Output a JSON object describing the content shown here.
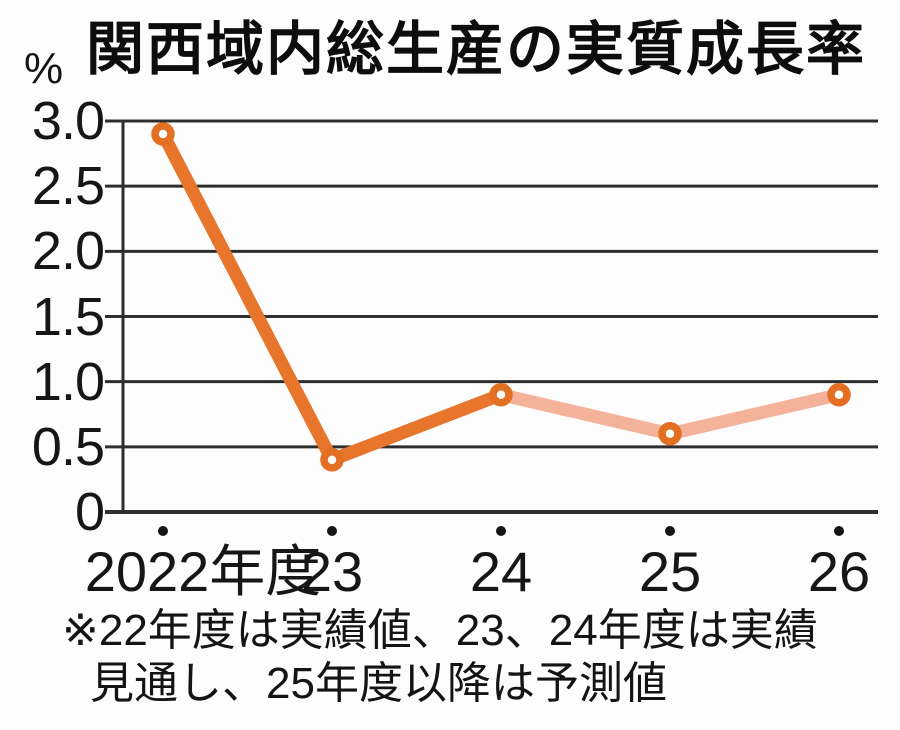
{
  "chart_data": {
    "type": "line",
    "title": "関西域内総生産の実質成長率",
    "unit_label": "%",
    "categories": [
      "2022年度",
      "23",
      "24",
      "25",
      "26"
    ],
    "values": [
      2.9,
      0.4,
      0.9,
      0.6,
      0.9
    ],
    "segments": [
      {
        "kind": "forecast",
        "from": 2,
        "to": 4
      },
      {
        "kind": "actual",
        "from": 0,
        "to": 2
      }
    ],
    "y_ticks": [
      3.0,
      2.5,
      2.0,
      1.5,
      1.0,
      0.5,
      0
    ],
    "y_tick_labels": [
      "3.0",
      "2.5",
      "2.0",
      "1.5",
      "1.0",
      "0.5",
      "0"
    ],
    "ylim": [
      0,
      3.0
    ],
    "grid": true,
    "legend": "none",
    "footnote_lines": [
      "※22年度は実績値、23、24年度は実績",
      "見通し、25年度以降は予測値"
    ],
    "colors": {
      "actual_line": "#e8752c",
      "forecast_line": "#f5b29b",
      "marker_ring": "#e26f22",
      "marker_center": "#ffffff",
      "grid": "#2e2e2e",
      "tick_dot": "#151515",
      "text": "#161616"
    }
  }
}
